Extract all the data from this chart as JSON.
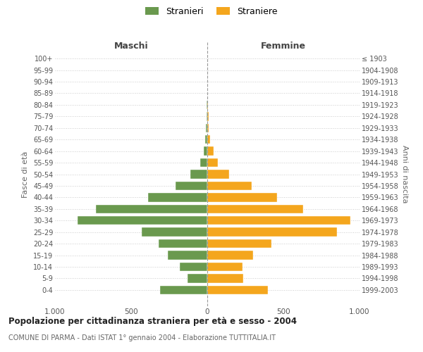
{
  "age_groups": [
    "100+",
    "95-99",
    "90-94",
    "85-89",
    "80-84",
    "75-79",
    "70-74",
    "65-69",
    "60-64",
    "55-59",
    "50-54",
    "45-49",
    "40-44",
    "35-39",
    "30-34",
    "25-29",
    "20-24",
    "15-19",
    "10-14",
    "5-9",
    "0-4"
  ],
  "birth_years": [
    "≤ 1903",
    "1904-1908",
    "1909-1913",
    "1914-1918",
    "1919-1923",
    "1924-1928",
    "1929-1933",
    "1934-1938",
    "1939-1943",
    "1944-1948",
    "1949-1953",
    "1954-1958",
    "1959-1963",
    "1964-1968",
    "1969-1973",
    "1974-1978",
    "1979-1983",
    "1984-1988",
    "1989-1993",
    "1994-1998",
    "1999-2003"
  ],
  "maschi": [
    0,
    0,
    0,
    0,
    4,
    5,
    8,
    12,
    25,
    45,
    110,
    210,
    390,
    730,
    850,
    430,
    320,
    260,
    180,
    130,
    310
  ],
  "femmine": [
    0,
    0,
    0,
    2,
    5,
    7,
    10,
    18,
    40,
    70,
    145,
    290,
    460,
    630,
    940,
    850,
    420,
    300,
    230,
    235,
    400
  ],
  "male_color": "#6a994e",
  "female_color": "#f4a61d",
  "background_color": "#ffffff",
  "grid_color": "#cccccc",
  "title": "Popolazione per cittadinanza straniera per età e sesso - 2004",
  "subtitle": "COMUNE DI PARMA - Dati ISTAT 1° gennaio 2004 - Elaborazione TUTTITALIA.IT",
  "header_left": "Maschi",
  "header_right": "Femmine",
  "ylabel_left": "Fasce di età",
  "ylabel_right": "Anni di nascita",
  "legend_male": "Stranieri",
  "legend_female": "Straniere",
  "xlim": 1000,
  "xticks": [
    -1000,
    -500,
    0,
    500,
    1000
  ],
  "xticklabels": [
    "1.000",
    "500",
    "0",
    "500",
    "1.000"
  ]
}
